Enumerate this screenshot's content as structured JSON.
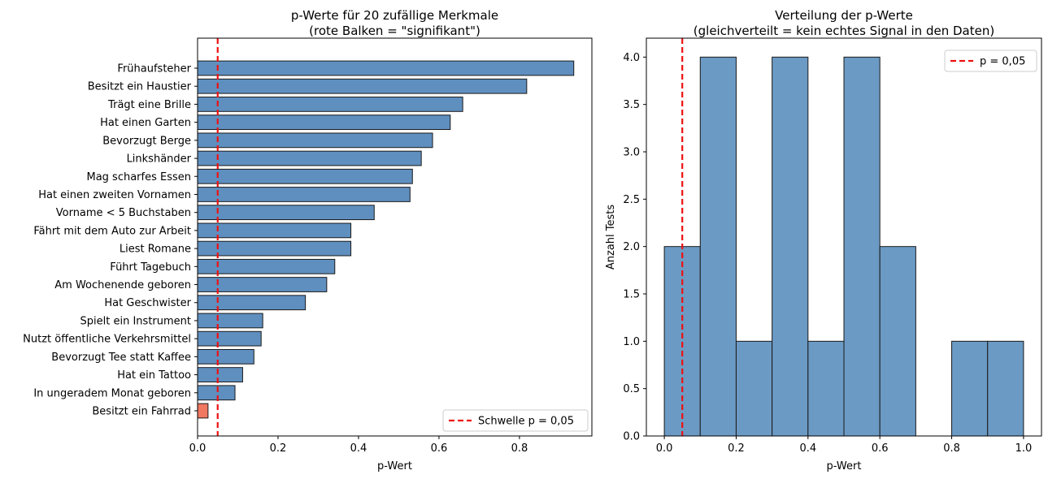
{
  "chart_data": [
    {
      "type": "bar",
      "orientation": "horizontal",
      "title": "p-Werte für 20 zufällige Merkmale\n(rote Balken = \"signifikant\")",
      "xlabel": "p-Wert",
      "ylabel": "",
      "xlim": [
        0,
        0.98
      ],
      "xticks": [
        0.0,
        0.2,
        0.4,
        0.6,
        0.8
      ],
      "xtick_labels": [
        "0.0",
        "0.2",
        "0.4",
        "0.6",
        "0.8"
      ],
      "categories": [
        "Frühaufsteher",
        "Besitzt ein Haustier",
        "Trägt eine Brille",
        "Hat einen Garten",
        "Bevorzugt Berge",
        "Linkshänder",
        "Mag scharfes Essen",
        "Hat einen zweiten Vornamen",
        "Vorname < 5 Buchstaben",
        "Fährt mit dem Auto zur Arbeit",
        "Liest Romane",
        "Führt Tagebuch",
        "Am Wochenende geboren",
        "Hat Geschwister",
        "Spielt ein Instrument",
        "Nutzt öffentliche Verkehrsmittel",
        "Bevorzugt Tee statt Kaffee",
        "Hat ein Tattoo",
        "In ungeradem Monat geboren",
        "Besitzt ein Fahrrad"
      ],
      "values": [
        0.935,
        0.818,
        0.659,
        0.628,
        0.584,
        0.556,
        0.534,
        0.528,
        0.439,
        0.381,
        0.381,
        0.341,
        0.321,
        0.268,
        0.162,
        0.158,
        0.14,
        0.112,
        0.093,
        0.026
      ],
      "colors": [
        "#5f8fbf",
        "#5f8fbf",
        "#5f8fbf",
        "#5f8fbf",
        "#5f8fbf",
        "#5f8fbf",
        "#5f8fbf",
        "#5f8fbf",
        "#5f8fbf",
        "#5f8fbf",
        "#5f8fbf",
        "#5f8fbf",
        "#5f8fbf",
        "#5f8fbf",
        "#5f8fbf",
        "#5f8fbf",
        "#5f8fbf",
        "#5f8fbf",
        "#5f8fbf",
        "#f07860"
      ],
      "threshold": {
        "value": 0.05,
        "label": "Schwelle p = 0,05",
        "color": "#ee1111"
      },
      "legend_position": "bottom-right",
      "grid": false
    },
    {
      "type": "histogram",
      "title": "Verteilung der p-Werte\n(gleichverteilt = kein echtes Signal in den Daten)",
      "xlabel": "p-Wert",
      "ylabel": "Anzahl Tests",
      "xlim": [
        -0.05,
        1.05
      ],
      "ylim": [
        0,
        4.2
      ],
      "xticks": [
        0.0,
        0.2,
        0.4,
        0.6,
        0.8,
        1.0
      ],
      "xtick_labels": [
        "0.0",
        "0.2",
        "0.4",
        "0.6",
        "0.8",
        "1.0"
      ],
      "yticks": [
        0.0,
        0.5,
        1.0,
        1.5,
        2.0,
        2.5,
        3.0,
        3.5,
        4.0
      ],
      "ytick_labels": [
        "0.0",
        "0.5",
        "1.0",
        "1.5",
        "2.0",
        "2.5",
        "3.0",
        "3.5",
        "4.0"
      ],
      "bin_edges": [
        0.0,
        0.1,
        0.2,
        0.3,
        0.4,
        0.5,
        0.6,
        0.7,
        0.8,
        0.9,
        1.0
      ],
      "counts": [
        2,
        4,
        1,
        4,
        1,
        4,
        2,
        0,
        1,
        1
      ],
      "bar_color": "#6b9ac4",
      "threshold": {
        "value": 0.05,
        "label": "p = 0,05",
        "color": "#ee1111"
      },
      "legend_position": "top-right",
      "grid": false
    }
  ]
}
